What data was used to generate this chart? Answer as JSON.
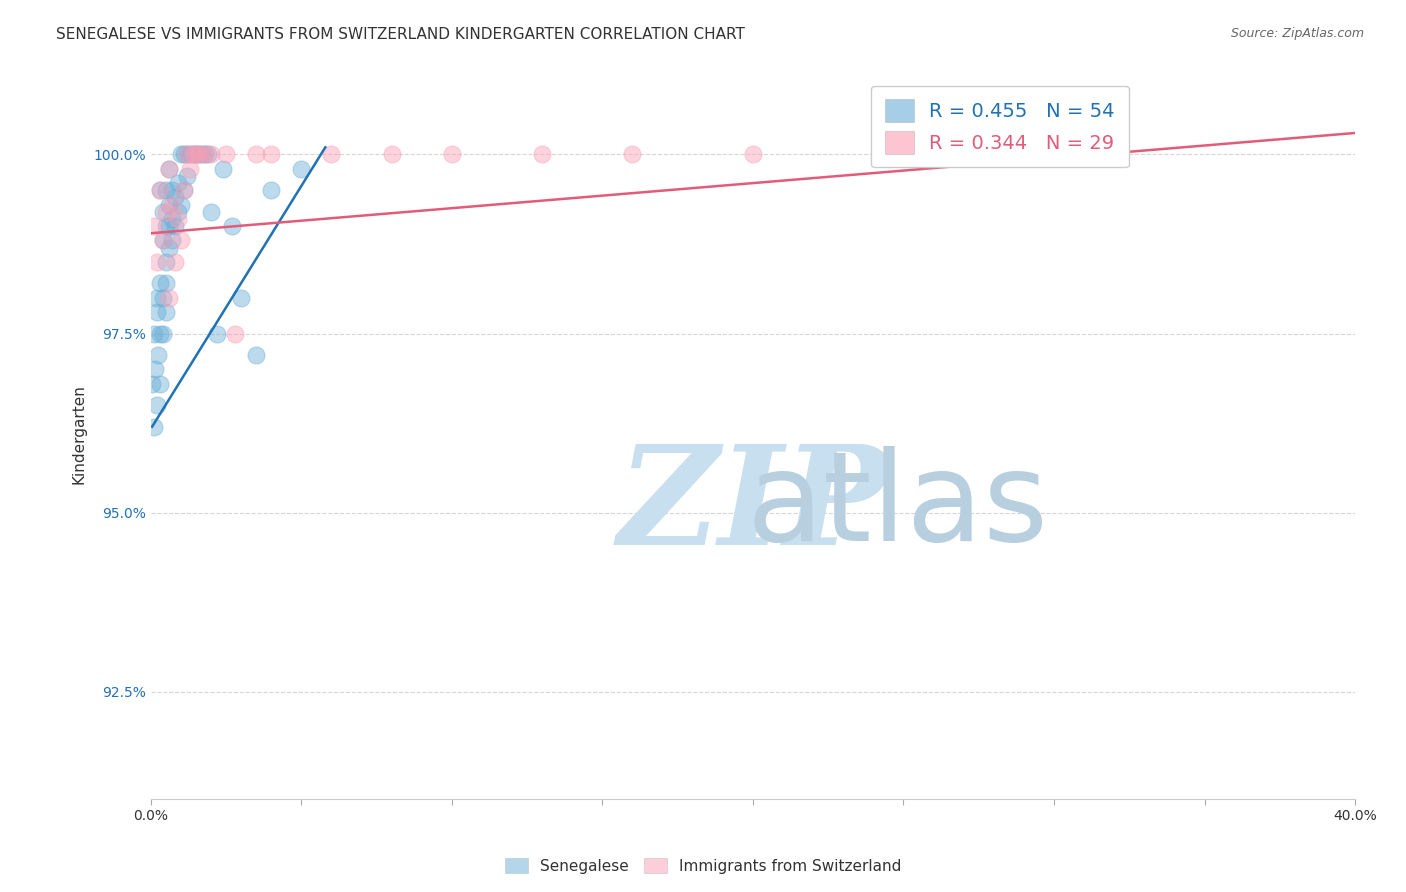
{
  "title": "SENEGALESE VS IMMIGRANTS FROM SWITZERLAND KINDERGARTEN CORRELATION CHART",
  "source": "Source: ZipAtlas.com",
  "ylabel": "Kindergarten",
  "yticks": [
    92.5,
    95.0,
    97.5,
    100.0
  ],
  "ytick_labels": [
    "92.5%",
    "95.0%",
    "97.5%",
    "100.0%"
  ],
  "xlim": [
    0.0,
    0.4
  ],
  "ylim": [
    91.0,
    101.2
  ],
  "legend_blue_R": "R = 0.455",
  "legend_blue_N": "N = 54",
  "legend_pink_R": "R = 0.344",
  "legend_pink_N": "N = 29",
  "blue_color": "#6baed6",
  "pink_color": "#fc9fb5",
  "blue_line_color": "#2171b5",
  "pink_line_color": "#e05c7a",
  "blue_scatter_x": [
    0.0005,
    0.001,
    0.001,
    0.0015,
    0.002,
    0.002,
    0.002,
    0.0025,
    0.003,
    0.003,
    0.003,
    0.003,
    0.004,
    0.004,
    0.004,
    0.004,
    0.005,
    0.005,
    0.005,
    0.005,
    0.005,
    0.006,
    0.006,
    0.006,
    0.006,
    0.007,
    0.007,
    0.007,
    0.008,
    0.008,
    0.009,
    0.009,
    0.01,
    0.01,
    0.011,
    0.011,
    0.012,
    0.012,
    0.013,
    0.014,
    0.015,
    0.015,
    0.016,
    0.017,
    0.018,
    0.019,
    0.02,
    0.022,
    0.024,
    0.027,
    0.03,
    0.035,
    0.04,
    0.05
  ],
  "blue_scatter_y": [
    96.8,
    97.5,
    96.2,
    97.0,
    97.8,
    96.5,
    98.0,
    97.2,
    97.5,
    98.2,
    96.8,
    99.5,
    98.0,
    97.5,
    98.8,
    99.2,
    98.5,
    97.8,
    99.0,
    98.2,
    99.5,
    98.7,
    99.0,
    99.3,
    99.8,
    98.8,
    99.1,
    99.5,
    99.0,
    99.4,
    99.2,
    99.6,
    99.3,
    100.0,
    99.5,
    100.0,
    99.7,
    100.0,
    100.0,
    100.0,
    100.0,
    100.0,
    100.0,
    100.0,
    100.0,
    100.0,
    99.2,
    97.5,
    99.8,
    99.0,
    98.0,
    97.2,
    99.5,
    99.8
  ],
  "pink_scatter_x": [
    0.001,
    0.002,
    0.003,
    0.004,
    0.005,
    0.006,
    0.006,
    0.007,
    0.008,
    0.009,
    0.01,
    0.011,
    0.012,
    0.013,
    0.014,
    0.015,
    0.016,
    0.018,
    0.02,
    0.025,
    0.028,
    0.035,
    0.04,
    0.06,
    0.08,
    0.1,
    0.13,
    0.16,
    0.2
  ],
  "pink_scatter_y": [
    99.0,
    98.5,
    99.5,
    98.8,
    99.2,
    98.0,
    99.8,
    99.3,
    98.5,
    99.1,
    98.8,
    99.5,
    100.0,
    99.8,
    100.0,
    100.0,
    100.0,
    100.0,
    100.0,
    100.0,
    97.5,
    100.0,
    100.0,
    100.0,
    100.0,
    100.0,
    100.0,
    100.0,
    100.0
  ],
  "blue_trendline_x": [
    0.0005,
    0.058
  ],
  "blue_trendline_y": [
    96.2,
    100.1
  ],
  "pink_trendline_x": [
    0.0,
    0.4
  ],
  "pink_trendline_y": [
    98.9,
    100.3
  ],
  "watermark_zip": "ZIP",
  "watermark_atlas": "atlas",
  "watermark_color_zip": "#c5dff5",
  "watermark_color_atlas": "#b0c8e0",
  "background_color": "#ffffff",
  "grid_color": "#cccccc"
}
